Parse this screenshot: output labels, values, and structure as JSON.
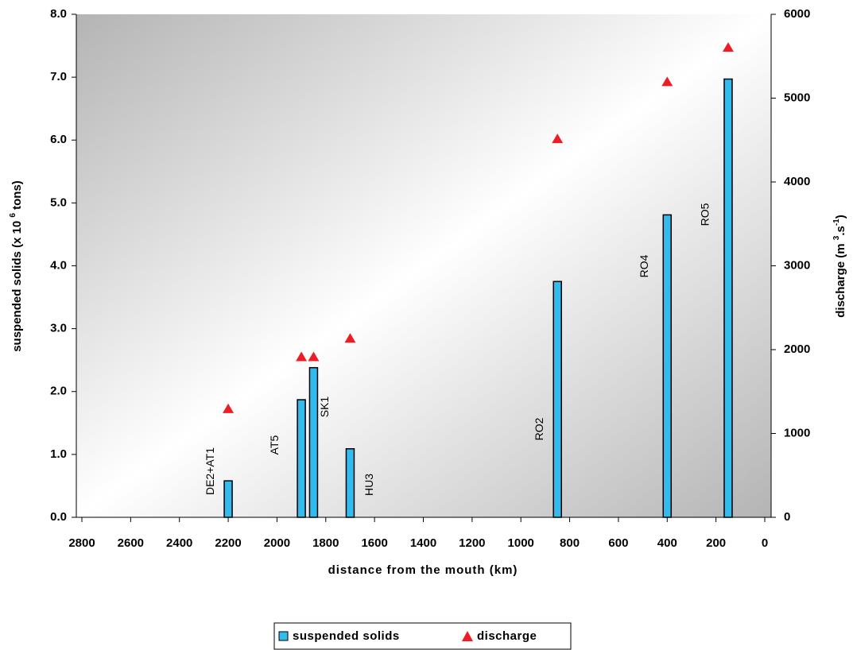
{
  "chart_data": {
    "type": "bar",
    "xlabel": "distance from the mouth (km)",
    "ylabel_parts": [
      "suspended solids (x 10 ",
      "6",
      " tons)"
    ],
    "y2label_parts": [
      "discharge (m ",
      "3",
      ".s",
      "-1",
      ")"
    ],
    "categories": [
      "DE2+AT1",
      "AT5",
      "SK1",
      "HU3",
      "RO2",
      "RO4",
      "RO5"
    ],
    "x": [
      2200,
      1900,
      1850,
      1700,
      850,
      400,
      150
    ],
    "series": [
      {
        "name": "suspended solids",
        "color": "#33bbee",
        "values": [
          0.58,
          1.87,
          2.38,
          1.09,
          3.75,
          4.81,
          6.97
        ]
      },
      {
        "name": "discharge",
        "color": "#ee1c25",
        "axis": "y2",
        "values": [
          1300,
          1920,
          1920,
          2140,
          4520,
          5200,
          5610
        ]
      }
    ],
    "xlim": [
      2800,
      0
    ],
    "xticks": [
      2800,
      2600,
      2400,
      2200,
      2000,
      1800,
      1600,
      1400,
      1200,
      1000,
      800,
      600,
      400,
      200,
      0
    ],
    "ylim": [
      0,
      8
    ],
    "yticks": [
      {
        "value": 0,
        "label": "0.0"
      },
      {
        "value": 1,
        "label": "1.0"
      },
      {
        "value": 2,
        "label": "2.0"
      },
      {
        "value": 3,
        "label": "3.0"
      },
      {
        "value": 4,
        "label": "4.0"
      },
      {
        "value": 5,
        "label": "5.0"
      },
      {
        "value": 6,
        "label": "6.0"
      },
      {
        "value": 7,
        "label": "7.0"
      },
      {
        "value": 8,
        "label": "8.0"
      }
    ],
    "y2lim": [
      0,
      6000
    ],
    "y2ticks": [
      0,
      1000,
      2000,
      3000,
      4000,
      5000,
      6000
    ],
    "legend": "bottom"
  }
}
